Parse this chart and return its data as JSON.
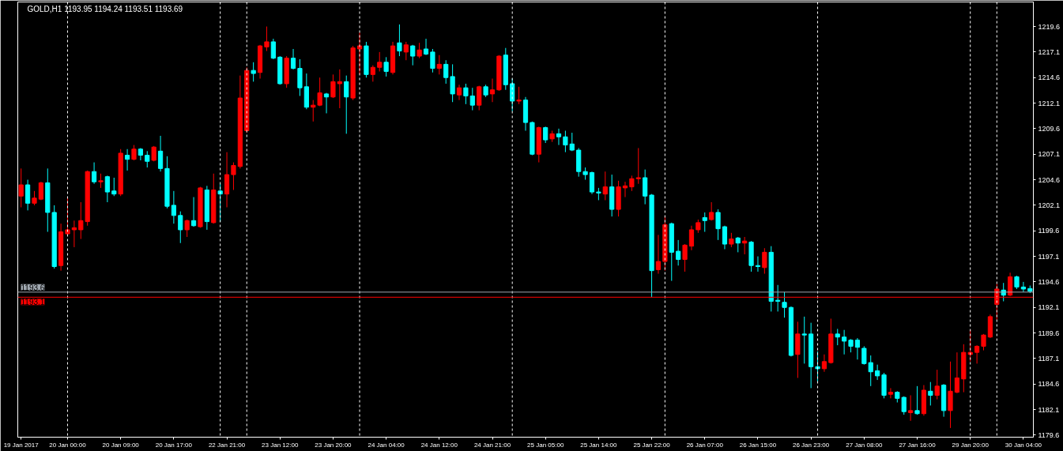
{
  "chart_data": {
    "type": "candlestick",
    "title": "GOLD,H1 1193.95 1194.24 1193.51 1193.69",
    "categories": [
      "19 Jan 2017",
      null,
      null,
      null,
      null,
      null,
      null,
      "20 Jan 00:00",
      null,
      null,
      null,
      null,
      null,
      null,
      null,
      "20 Jan 09:00",
      null,
      null,
      null,
      null,
      null,
      null,
      null,
      "20 Jan 17:00",
      null,
      null,
      null,
      null,
      null,
      null,
      null,
      "22 Jan 21:00",
      null,
      null,
      null,
      null,
      null,
      null,
      null,
      "23 Jan 12:00",
      null,
      null,
      null,
      null,
      null,
      null,
      null,
      "23 Jan 20:00",
      null,
      null,
      null,
      null,
      null,
      null,
      null,
      "24 Jan 04:00",
      null,
      null,
      null,
      null,
      null,
      null,
      null,
      "24 Jan 12:00",
      null,
      null,
      null,
      null,
      null,
      null,
      null,
      "24 Jan 21:00",
      null,
      null,
      null,
      null,
      null,
      null,
      null,
      "25 Jan 05:00",
      null,
      null,
      null,
      null,
      null,
      null,
      null,
      "25 Jan 14:00",
      null,
      null,
      null,
      null,
      null,
      null,
      null,
      "25 Jan 22:00",
      null,
      null,
      null,
      null,
      null,
      null,
      null,
      "26 Jan 07:00",
      null,
      null,
      null,
      null,
      null,
      null,
      null,
      "26 Jan 15:00",
      null,
      null,
      null,
      null,
      null,
      null,
      null,
      "26 Jan 23:00",
      null,
      null,
      null,
      null,
      null,
      null,
      null,
      "27 Jan 08:00",
      null,
      null,
      null,
      null,
      null,
      null,
      null,
      "27 Jan 16:00",
      null,
      null,
      null,
      null,
      null,
      null,
      null,
      "29 Jan 20:00",
      null,
      null,
      null,
      null,
      null,
      null,
      null,
      "30 Jan 04:00",
      null
    ],
    "ohlc": [
      [
        1203.0,
        1205.7,
        1201.9,
        1204.1
      ],
      [
        1204.1,
        1204.6,
        1201.6,
        1202.3
      ],
      [
        1202.3,
        1203.5,
        1202.1,
        1202.8
      ],
      [
        1202.7,
        1204.4,
        1202.6,
        1204.3
      ],
      [
        1204.3,
        1205.7,
        1199.5,
        1201.4
      ],
      [
        1201.4,
        1202.1,
        1195.9,
        1196.1
      ],
      [
        1196.2,
        1200.3,
        1195.7,
        1199.5
      ],
      [
        1199.3,
        1202.8,
        1199.2,
        1199.7
      ],
      [
        1199.7,
        1200.6,
        1198.0,
        1199.9
      ],
      [
        1199.7,
        1202.4,
        1198.8,
        1200.6
      ],
      [
        1200.5,
        1205.5,
        1200.1,
        1205.4
      ],
      [
        1205.4,
        1206.3,
        1204.2,
        1204.4
      ],
      [
        1204.4,
        1205.2,
        1203.8,
        1204.5
      ],
      [
        1204.9,
        1205.0,
        1202.4,
        1203.4
      ],
      [
        1203.5,
        1204.8,
        1203.0,
        1203.2
      ],
      [
        1203.2,
        1207.6,
        1203.0,
        1207.2
      ],
      [
        1207.0,
        1207.6,
        1205.5,
        1206.6
      ],
      [
        1206.6,
        1208.0,
        1206.5,
        1207.6
      ],
      [
        1207.6,
        1207.7,
        1206.5,
        1207.0
      ],
      [
        1207.0,
        1207.4,
        1205.8,
        1206.4
      ],
      [
        1206.5,
        1207.9,
        1206.4,
        1207.8
      ],
      [
        1207.4,
        1208.9,
        1205.4,
        1205.7
      ],
      [
        1205.7,
        1206.9,
        1201.8,
        1202.0
      ],
      [
        1202.1,
        1203.5,
        1200.3,
        1201.1
      ],
      [
        1201.1,
        1201.5,
        1198.4,
        1199.7
      ],
      [
        1199.7,
        1200.7,
        1199.0,
        1200.6
      ],
      [
        1200.6,
        1202.9,
        1200.0,
        1200.1
      ],
      [
        1200.0,
        1203.9,
        1199.9,
        1203.8
      ],
      [
        1203.6,
        1204.0,
        1199.7,
        1200.5
      ],
      [
        1200.4,
        1205.2,
        1200.3,
        1203.6
      ],
      [
        1203.5,
        1204.2,
        1200.5,
        1203.2
      ],
      [
        1203.2,
        1207.3,
        1201.9,
        1205.1
      ],
      [
        1205.1,
        1206.3,
        1203.6,
        1206.0
      ],
      [
        1205.9,
        1214.8,
        1205.7,
        1212.6
      ],
      [
        1209.4,
        1215.6,
        1209.2,
        1215.3
      ],
      [
        1215.3,
        1216.1,
        1214.2,
        1215.0
      ],
      [
        1215.1,
        1217.8,
        1214.5,
        1217.7
      ],
      [
        1217.6,
        1219.6,
        1217.2,
        1218.1
      ],
      [
        1218.1,
        1218.4,
        1216.4,
        1216.5
      ],
      [
        1216.6,
        1216.7,
        1213.9,
        1214.0
      ],
      [
        1214.0,
        1216.7,
        1213.6,
        1216.5
      ],
      [
        1216.5,
        1217.4,
        1215.4,
        1215.5
      ],
      [
        1215.5,
        1216.4,
        1212.8,
        1213.6
      ],
      [
        1213.7,
        1215.0,
        1211.5,
        1211.7
      ],
      [
        1211.7,
        1212.4,
        1210.3,
        1211.9
      ],
      [
        1211.9,
        1214.6,
        1211.8,
        1213.1
      ],
      [
        1213.0,
        1213.1,
        1211.1,
        1212.7
      ],
      [
        1212.7,
        1214.9,
        1212.6,
        1214.2
      ],
      [
        1214.0,
        1215.4,
        1211.6,
        1214.2
      ],
      [
        1214.2,
        1214.8,
        1209.1,
        1212.7
      ],
      [
        1212.6,
        1217.7,
        1212.4,
        1217.5
      ],
      [
        1217.4,
        1219.0,
        1214.9,
        1217.7
      ],
      [
        1217.7,
        1218.1,
        1214.6,
        1214.9
      ],
      [
        1214.9,
        1215.8,
        1214.2,
        1215.6
      ],
      [
        1215.6,
        1217.1,
        1215.2,
        1216.1
      ],
      [
        1216.1,
        1216.6,
        1214.7,
        1215.2
      ],
      [
        1215.1,
        1218.1,
        1214.9,
        1217.7
      ],
      [
        1218.0,
        1219.8,
        1216.7,
        1217.2
      ],
      [
        1217.1,
        1218.1,
        1216.3,
        1217.8
      ],
      [
        1217.7,
        1217.8,
        1215.8,
        1216.7
      ],
      [
        1216.7,
        1218.0,
        1216.5,
        1217.3
      ],
      [
        1217.4,
        1218.4,
        1216.8,
        1216.9
      ],
      [
        1217.1,
        1217.4,
        1215.1,
        1215.5
      ],
      [
        1215.5,
        1216.8,
        1214.9,
        1215.9
      ],
      [
        1215.9,
        1216.3,
        1214.0,
        1214.6
      ],
      [
        1214.7,
        1215.9,
        1212.2,
        1213.0
      ],
      [
        1212.9,
        1213.9,
        1212.4,
        1213.6
      ],
      [
        1213.6,
        1214.0,
        1212.0,
        1212.8
      ],
      [
        1212.8,
        1213.6,
        1211.4,
        1211.9
      ],
      [
        1211.9,
        1213.8,
        1211.4,
        1213.7
      ],
      [
        1213.7,
        1213.9,
        1212.7,
        1212.9
      ],
      [
        1213.0,
        1214.5,
        1212.2,
        1213.4
      ],
      [
        1213.4,
        1216.8,
        1213.3,
        1216.7
      ],
      [
        1216.8,
        1217.5,
        1213.4,
        1213.9
      ],
      [
        1214.0,
        1214.5,
        1211.3,
        1212.3
      ],
      [
        1212.3,
        1213.7,
        1212.0,
        1212.4
      ],
      [
        1212.4,
        1212.7,
        1209.4,
        1210.2
      ],
      [
        1210.2,
        1210.3,
        1207.0,
        1207.1
      ],
      [
        1207.1,
        1209.8,
        1206.3,
        1209.7
      ],
      [
        1209.7,
        1209.8,
        1208.2,
        1208.5
      ],
      [
        1208.6,
        1209.4,
        1208.3,
        1209.1
      ],
      [
        1209.1,
        1209.6,
        1208.0,
        1208.8
      ],
      [
        1208.8,
        1209.4,
        1207.3,
        1208.0
      ],
      [
        1208.1,
        1209.2,
        1207.4,
        1207.5
      ],
      [
        1207.5,
        1207.7,
        1204.9,
        1205.4
      ],
      [
        1205.4,
        1205.8,
        1204.6,
        1205.1
      ],
      [
        1205.3,
        1205.4,
        1203.2,
        1203.4
      ],
      [
        1203.4,
        1203.8,
        1202.6,
        1203.3
      ],
      [
        1203.2,
        1205.4,
        1202.6,
        1203.9
      ],
      [
        1203.9,
        1205.1,
        1201.0,
        1201.7
      ],
      [
        1201.7,
        1204.5,
        1201.0,
        1203.9
      ],
      [
        1203.8,
        1204.4,
        1202.9,
        1204.0
      ],
      [
        1203.9,
        1205.0,
        1203.5,
        1204.7
      ],
      [
        1204.7,
        1207.7,
        1204.2,
        1204.8
      ],
      [
        1204.8,
        1205.6,
        1202.2,
        1203.0
      ],
      [
        1203.1,
        1203.2,
        1193.1,
        1195.7
      ],
      [
        1195.8,
        1199.2,
        1195.4,
        1196.6
      ],
      [
        1196.6,
        1201.0,
        1195.7,
        1200.2
      ],
      [
        1200.3,
        1200.4,
        1194.7,
        1197.5
      ],
      [
        1197.6,
        1198.7,
        1196.2,
        1196.8
      ],
      [
        1196.8,
        1198.3,
        1195.6,
        1198.2
      ],
      [
        1198.1,
        1200.1,
        1197.7,
        1199.7
      ],
      [
        1199.7,
        1200.7,
        1199.4,
        1200.4
      ],
      [
        1200.9,
        1201.4,
        1199.5,
        1200.6
      ],
      [
        1200.7,
        1202.4,
        1200.6,
        1201.4
      ],
      [
        1201.4,
        1201.7,
        1198.7,
        1199.8
      ],
      [
        1200.0,
        1200.1,
        1197.8,
        1198.3
      ],
      [
        1198.3,
        1199.4,
        1198.0,
        1198.8
      ],
      [
        1198.9,
        1199.0,
        1197.5,
        1198.4
      ],
      [
        1198.4,
        1199.0,
        1197.3,
        1198.6
      ],
      [
        1198.5,
        1198.6,
        1195.6,
        1196.2
      ],
      [
        1196.2,
        1197.1,
        1195.6,
        1196.1
      ],
      [
        1196.0,
        1197.9,
        1195.4,
        1197.5
      ],
      [
        1197.5,
        1198.1,
        1191.7,
        1192.7
      ],
      [
        1192.8,
        1194.3,
        1191.7,
        1192.7
      ],
      [
        1192.6,
        1193.6,
        1191.1,
        1192.1
      ],
      [
        1192.1,
        1192.2,
        1187.3,
        1187.4
      ],
      [
        1187.5,
        1190.7,
        1185.2,
        1189.5
      ],
      [
        1189.5,
        1191.2,
        1186.6,
        1189.4
      ],
      [
        1189.5,
        1190.6,
        1184.2,
        1186.3
      ],
      [
        1186.3,
        1187.8,
        1184.8,
        1186.1
      ],
      [
        1186.1,
        1187.5,
        1185.8,
        1186.8
      ],
      [
        1186.7,
        1191.0,
        1186.6,
        1189.5
      ],
      [
        1189.5,
        1190.0,
        1188.4,
        1189.2
      ],
      [
        1189.2,
        1189.9,
        1187.5,
        1188.8
      ],
      [
        1188.9,
        1189.0,
        1187.7,
        1188.3
      ],
      [
        1188.9,
        1189.1,
        1187.0,
        1188.2
      ],
      [
        1188.1,
        1188.3,
        1186.5,
        1186.6
      ],
      [
        1186.7,
        1187.4,
        1184.4,
        1185.8
      ],
      [
        1185.9,
        1186.5,
        1185.0,
        1185.4
      ],
      [
        1185.5,
        1185.7,
        1183.2,
        1183.5
      ],
      [
        1183.6,
        1184.2,
        1183.2,
        1183.8
      ],
      [
        1183.8,
        1183.9,
        1182.8,
        1183.2
      ],
      [
        1183.3,
        1183.4,
        1181.6,
        1181.9
      ],
      [
        1181.8,
        1183.5,
        1181.0,
        1182.0
      ],
      [
        1182.0,
        1184.4,
        1181.6,
        1181.7
      ],
      [
        1181.7,
        1184.5,
        1181.5,
        1184.0
      ],
      [
        1183.9,
        1184.8,
        1182.5,
        1183.5
      ],
      [
        1183.5,
        1186.0,
        1183.1,
        1184.4
      ],
      [
        1184.5,
        1184.6,
        1181.4,
        1182.0
      ],
      [
        1182.0,
        1186.8,
        1180.3,
        1183.9
      ],
      [
        1183.8,
        1187.7,
        1183.7,
        1185.2
      ],
      [
        1185.1,
        1188.5,
        1183.8,
        1187.7
      ],
      [
        1187.5,
        1189.9,
        1186.8,
        1187.7
      ],
      [
        1187.7,
        1188.4,
        1186.6,
        1188.3
      ],
      [
        1188.3,
        1189.5,
        1187.9,
        1189.4
      ],
      [
        1189.2,
        1191.4,
        1189.1,
        1191.2
      ],
      [
        1192.4,
        1194.4,
        1190.9,
        1193.9
      ],
      [
        1193.8,
        1194.5,
        1192.7,
        1193.3
      ],
      [
        1193.3,
        1195.5,
        1193.2,
        1195.1
      ],
      [
        1195.1,
        1195.2,
        1193.9,
        1194.1
      ],
      [
        1194.1,
        1194.6,
        1193.6,
        1193.9
      ],
      [
        1193.95,
        1194.24,
        1193.51,
        1193.69
      ]
    ],
    "colors": [
      "#ff0000",
      "#00ffff",
      "#ff0000",
      "#ff0000",
      "#00ffff",
      "#00ffff",
      "#ff0000",
      "#ff0000",
      "#ff0000",
      "#ff0000",
      "#ff0000",
      "#00ffff",
      "#ff0000",
      "#00ffff",
      "#00ffff",
      "#ff0000",
      "#00ffff",
      "#ff0000",
      "#00ffff",
      "#00ffff",
      "#ff0000",
      "#00ffff",
      "#00ffff",
      "#00ffff",
      "#00ffff",
      "#ff0000",
      "#00ffff",
      "#ff0000",
      "#00ffff",
      "#ff0000",
      "#00ffff",
      "#ff0000",
      "#ff0000",
      "#ff0000",
      "#ff0000",
      "#00ffff",
      "#ff0000",
      "#ff0000",
      "#00ffff",
      "#00ffff",
      "#ff0000",
      "#00ffff",
      "#00ffff",
      "#00ffff",
      "#ff0000",
      "#ff0000",
      "#00ffff",
      "#ff0000",
      "#ff0000",
      "#00ffff",
      "#ff0000",
      "#ff0000",
      "#00ffff",
      "#ff0000",
      "#ff0000",
      "#00ffff",
      "#ff0000",
      "#00ffff",
      "#ff0000",
      "#00ffff",
      "#ff0000",
      "#00ffff",
      "#00ffff",
      "#ff0000",
      "#00ffff",
      "#00ffff",
      "#ff0000",
      "#00ffff",
      "#00ffff",
      "#ff0000",
      "#00ffff",
      "#ff0000",
      "#ff0000",
      "#00ffff",
      "#00ffff",
      "#ff0000",
      "#00ffff",
      "#00ffff",
      "#ff0000",
      "#00ffff",
      "#ff0000",
      "#00ffff",
      "#00ffff",
      "#00ffff",
      "#00ffff",
      "#00ffff",
      "#00ffff",
      "#00ffff",
      "#ff0000",
      "#00ffff",
      "#ff0000",
      "#ff0000",
      "#ff0000",
      "#ff0000",
      "#00ffff",
      "#00ffff",
      "#ff0000",
      "#ff0000",
      "#00ffff",
      "#00ffff",
      "#ff0000",
      "#ff0000",
      "#ff0000",
      "#00ffff",
      "#ff0000",
      "#00ffff",
      "#00ffff",
      "#ff0000",
      "#00ffff",
      "#ff0000",
      "#00ffff",
      "#00ffff",
      "#ff0000",
      "#00ffff",
      "#00ffff",
      "#00ffff",
      "#00ffff",
      "#ff0000",
      "#00ffff",
      "#00ffff",
      "#00ffff",
      "#ff0000",
      "#ff0000",
      "#00ffff",
      "#00ffff",
      "#00ffff",
      "#00ffff",
      "#00ffff",
      "#00ffff",
      "#00ffff",
      "#00ffff",
      "#ff0000",
      "#00ffff",
      "#00ffff",
      "#ff0000",
      "#00ffff",
      "#ff0000",
      "#00ffff",
      "#ff0000",
      "#00ffff",
      "#ff0000",
      "#ff0000",
      "#ff0000",
      "#ff0000",
      "#ff0000",
      "#ff0000",
      "#ff0000",
      "#ff0000",
      "#00ffff",
      "#ff0000",
      "#00ffff",
      "#00ffff",
      "#00ffff"
    ],
    "ylim": [
      1179.4,
      1222.0
    ],
    "yticks": [
      1179.6,
      1182.1,
      1184.6,
      1187.1,
      1189.6,
      1192.1,
      1194.6,
      1197.1,
      1199.6,
      1202.1,
      1204.6,
      1207.1,
      1209.6,
      1212.1,
      1214.6,
      1217.1,
      1219.6
    ],
    "ref_lines": [
      {
        "axis": "y",
        "value": 1193.6,
        "label": "1193.6",
        "color": "#a0a8b0",
        "line_style": "solid"
      },
      {
        "axis": "y",
        "value": 1193.1,
        "label": "1193.1",
        "color": "#ff0000",
        "line_style": "solid"
      }
    ]
  }
}
